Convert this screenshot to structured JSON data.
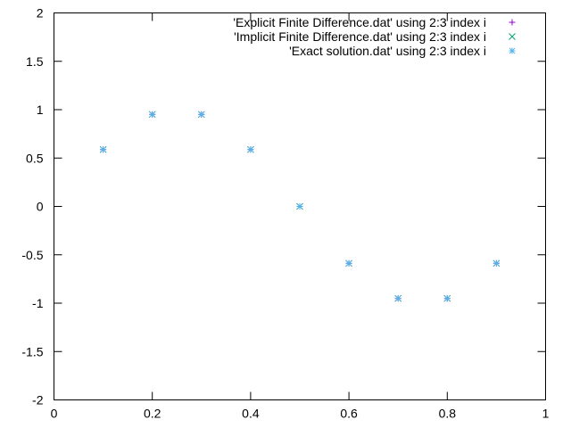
{
  "chart_data": {
    "type": "scatter",
    "xlim": [
      0,
      1
    ],
    "ylim": [
      -2,
      2
    ],
    "x_ticks": [
      {
        "value": 0,
        "label": "0"
      },
      {
        "value": 0.2,
        "label": "0.2"
      },
      {
        "value": 0.4,
        "label": "0.4"
      },
      {
        "value": 0.6,
        "label": "0.6"
      },
      {
        "value": 0.8,
        "label": "0.8"
      },
      {
        "value": 1,
        "label": "1"
      }
    ],
    "y_ticks": [
      {
        "value": -2,
        "label": "-2"
      },
      {
        "value": -1.5,
        "label": "-1.5"
      },
      {
        "value": -1,
        "label": "-1"
      },
      {
        "value": -0.5,
        "label": "-0.5"
      },
      {
        "value": 0,
        "label": "0"
      },
      {
        "value": 0.5,
        "label": "0.5"
      },
      {
        "value": 1,
        "label": "1"
      },
      {
        "value": 1.5,
        "label": "1.5"
      },
      {
        "value": 2,
        "label": "2"
      }
    ],
    "grid": false,
    "legend_position": "top-right",
    "series": [
      {
        "name": "'Explicit Finite Difference.dat' using 2:3 index i",
        "marker": "plus",
        "color": "#9400d3",
        "x": [
          0.1,
          0.2,
          0.3,
          0.4,
          0.5,
          0.6,
          0.7,
          0.8,
          0.9
        ],
        "y": [
          0.588,
          0.951,
          0.951,
          0.588,
          0.0,
          -0.588,
          -0.951,
          -0.951,
          -0.588
        ]
      },
      {
        "name": "'Implicit Finite Difference.dat' using 2:3 index i",
        "marker": "cross",
        "color": "#009e73",
        "x": [
          0.1,
          0.2,
          0.3,
          0.4,
          0.5,
          0.6,
          0.7,
          0.8,
          0.9
        ],
        "y": [
          0.588,
          0.951,
          0.951,
          0.588,
          0.0,
          -0.588,
          -0.951,
          -0.951,
          -0.588
        ]
      },
      {
        "name": "'Exact solution.dat' using 2:3 index i",
        "marker": "star",
        "color": "#56b4e9",
        "x": [
          0.1,
          0.2,
          0.3,
          0.4,
          0.5,
          0.6,
          0.7,
          0.8,
          0.9
        ],
        "y": [
          0.588,
          0.951,
          0.951,
          0.588,
          0.0,
          -0.588,
          -0.951,
          -0.951,
          -0.588
        ]
      }
    ]
  }
}
